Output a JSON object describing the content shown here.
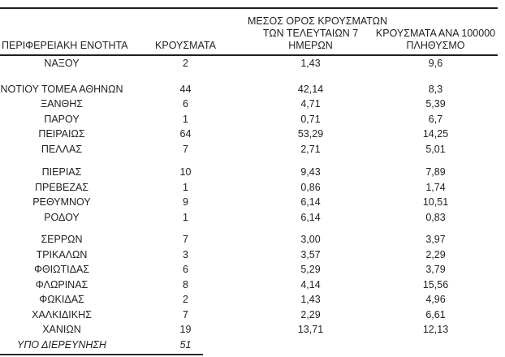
{
  "table": {
    "columns": [
      {
        "key": "region",
        "label": "ΠΕΡΙΦΕΡΕΙΑΚΗ ΕΝΟΤΗΤΑ"
      },
      {
        "key": "cases",
        "label": "ΚΡΟΥΣΜΑΤΑ"
      },
      {
        "key": "avg7",
        "label": "ΜΕΣΟΣ ΟΡΟΣ ΚΡΟΥΣΜΑΤΩΝ\nΤΩΝ ΤΕΛΕΥΤΑΙΩΝ 7\nΗΜΕΡΩΝ"
      },
      {
        "key": "per100k",
        "label": "ΚΡΟΥΣΜΑΤΑ ΑΝΑ 100000\nΠΛΗΘΥΣΜΟ"
      }
    ],
    "rows": [
      {
        "region": "ΝΑΞΟΥ",
        "cases": "2",
        "avg7": "1,43",
        "per100k": "9,6"
      },
      {
        "region": "ΝΟΤΙΟΥ ΤΟΜΕΑ ΑΘΗΝΩΝ",
        "cases": "44",
        "avg7": "42,14",
        "per100k": "8,3"
      },
      {
        "region": "ΞΑΝΘΗΣ",
        "cases": "6",
        "avg7": "4,71",
        "per100k": "5,39"
      },
      {
        "region": "ΠΑΡΟΥ",
        "cases": "1",
        "avg7": "0,71",
        "per100k": "6,7"
      },
      {
        "region": "ΠΕΙΡΑΙΩΣ",
        "cases": "64",
        "avg7": "53,29",
        "per100k": "14,25"
      },
      {
        "region": "ΠΕΛΛΑΣ",
        "cases": "7",
        "avg7": "2,71",
        "per100k": "5,01"
      },
      {
        "region": "ΠΙΕΡΙΑΣ",
        "cases": "10",
        "avg7": "9,43",
        "per100k": "7,89"
      },
      {
        "region": "ΠΡΕΒΕΖΑΣ",
        "cases": "1",
        "avg7": "0,86",
        "per100k": "1,74"
      },
      {
        "region": "ΡΕΘΥΜΝΟΥ",
        "cases": "9",
        "avg7": "6,14",
        "per100k": "10,51"
      },
      {
        "region": "ΡΟΔΟΥ",
        "cases": "1",
        "avg7": "6,14",
        "per100k": "0,83"
      },
      {
        "region": "ΣΕΡΡΩΝ",
        "cases": "7",
        "avg7": "3,00",
        "per100k": "3,97"
      },
      {
        "region": "ΤΡΙΚΑΛΩΝ",
        "cases": "3",
        "avg7": "3,57",
        "per100k": "2,29"
      },
      {
        "region": "ΦΘΙΩΤΙΔΑΣ",
        "cases": "6",
        "avg7": "5,29",
        "per100k": "3,79"
      },
      {
        "region": "ΦΛΩΡΙΝΑΣ",
        "cases": "8",
        "avg7": "4,14",
        "per100k": "15,56"
      },
      {
        "region": "ΦΩΚΙΔΑΣ",
        "cases": "2",
        "avg7": "1,43",
        "per100k": "4,96"
      },
      {
        "region": "ΧΑΛΚΙΔΙΚΗΣ",
        "cases": "7",
        "avg7": "2,29",
        "per100k": "6,61"
      },
      {
        "region": "ΧΑΝΙΩΝ",
        "cases": "19",
        "avg7": "13,71",
        "per100k": "12,13"
      },
      {
        "region": "ΥΠΟ ΔΙΕΡΕΥΝΗΣΗ",
        "cases": "51",
        "avg7": "",
        "per100k": ""
      }
    ],
    "colors": {
      "text": "#1f1f1f",
      "rule": "#1f1f1f",
      "background": "#ffffff"
    }
  }
}
